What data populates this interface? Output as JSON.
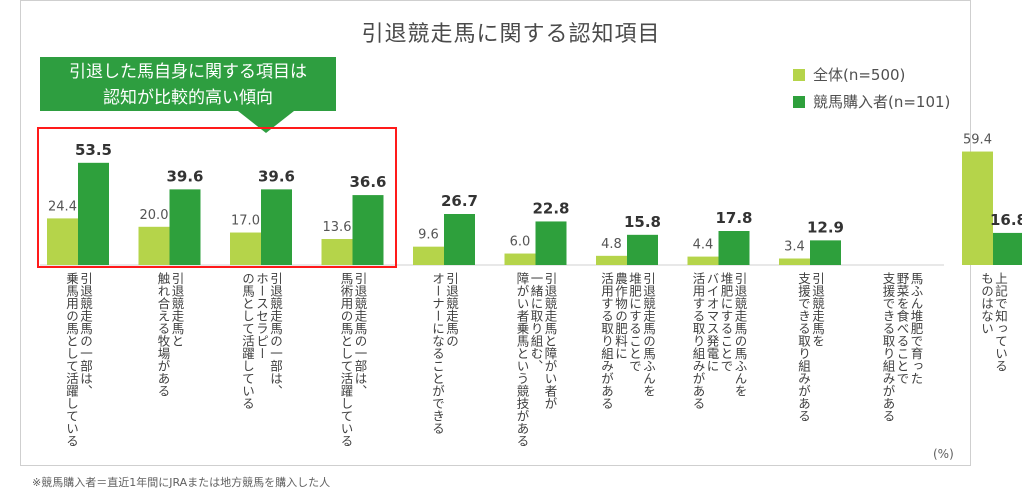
{
  "chart_data": {
    "type": "bar",
    "title": "引退競走馬に関する認知項目",
    "unit": "(%)",
    "ylim": [
      0,
      70
    ],
    "categories": [
      [
        "引退競走馬の一部は、",
        "乗馬用の馬として活躍している"
      ],
      [
        "引退競走馬と",
        "触れ合える牧場がある"
      ],
      [
        "引退競走馬の一部は、",
        "ホースセラピー",
        "の馬として活躍している"
      ],
      [
        "引退競走馬の一部は、",
        "馬術用の馬として活躍している"
      ],
      [
        "引退競走馬の",
        "オーナーになることができる"
      ],
      [
        "引退競走馬と障がい者が",
        "一緒に取り組む、",
        "障がい者乗馬という競技がある"
      ],
      [
        "引退競走馬の馬ふんを",
        "堆肥にすることで",
        "農作物の肥料に",
        "活用する取り組みがある"
      ],
      [
        "引退競走馬の馬ふんを",
        "堆肥にすることで",
        "バイオマス発電に",
        "活用する取り組みがある"
      ],
      [
        "引退競走馬を",
        "支援できる取り組みがある"
      ],
      [
        "馬ふん堆肥で育った",
        "野菜を食べることで",
        "支援できる取り組みがある"
      ],
      [
        "上記で知っている",
        "ものはない"
      ]
    ],
    "series": [
      {
        "name": "全体(n=500)",
        "color": "#b5d44a",
        "values": [
          24.4,
          20.0,
          17.0,
          13.6,
          9.6,
          6.0,
          4.8,
          4.4,
          3.4,
          null,
          59.4
        ],
        "labels": [
          "24.4",
          "20.0",
          "17.0",
          "13.6",
          "9.6",
          "6.0",
          "4.8",
          "4.4",
          "3.4",
          "",
          "59.4"
        ]
      },
      {
        "name": "競馬購入者(n=101)",
        "color": "#2ea03c",
        "values": [
          53.5,
          39.6,
          39.6,
          36.6,
          26.7,
          22.8,
          15.8,
          17.8,
          12.9,
          null,
          16.8
        ],
        "labels": [
          "53.5",
          "39.6",
          "39.6",
          "36.6",
          "26.7",
          "22.8",
          "15.8",
          "17.8",
          "12.9",
          "",
          "16.8"
        ]
      }
    ]
  },
  "callout": {
    "line1": "引退した馬自身に関する項目は",
    "line2": "認知が比較的高い傾向"
  },
  "legend": {
    "total": "全体(n=500)",
    "buyers": "競馬購入者(n=101)"
  },
  "footnote": "※競馬購入者＝直近1年間にJRAまたは地方競馬を購入した人"
}
